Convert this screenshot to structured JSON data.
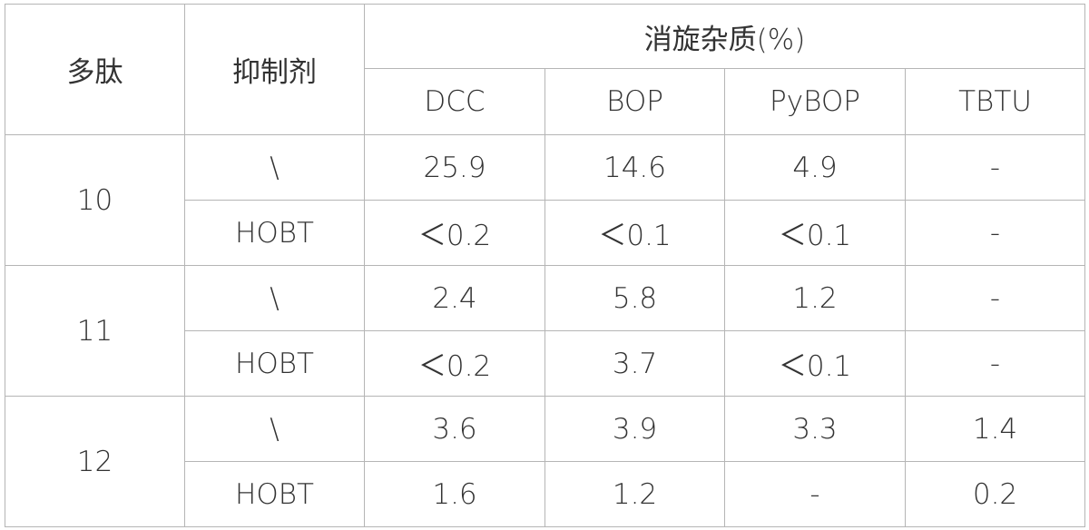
{
  "header": {
    "peptide": "多肽",
    "inhibitor": "抑制剂",
    "group": "消旋杂质(%)",
    "columns": [
      "DCC",
      "BOP",
      "PyBOP",
      "TBTU"
    ]
  },
  "groups": [
    {
      "peptide": "10",
      "rows": [
        {
          "inhibitor": "\\",
          "values": [
            "25.9",
            "14.6",
            "4.9",
            "-"
          ]
        },
        {
          "inhibitor": "HOBT",
          "values": [
            "＜0.2",
            "＜0.1",
            "＜0.1",
            "-"
          ]
        }
      ]
    },
    {
      "peptide": "11",
      "rows": [
        {
          "inhibitor": "\\",
          "values": [
            "2.4",
            "5.8",
            "1.2",
            "-"
          ]
        },
        {
          "inhibitor": "HOBT",
          "values": [
            "＜0.2",
            "3.7",
            "＜0.1",
            "-"
          ]
        }
      ]
    },
    {
      "peptide": "12",
      "rows": [
        {
          "inhibitor": "\\",
          "values": [
            "3.6",
            "3.9",
            "3.3",
            "1.4"
          ]
        },
        {
          "inhibitor": "HOBT",
          "values": [
            "1.6",
            "1.2",
            "-",
            "0.2"
          ]
        }
      ]
    }
  ]
}
